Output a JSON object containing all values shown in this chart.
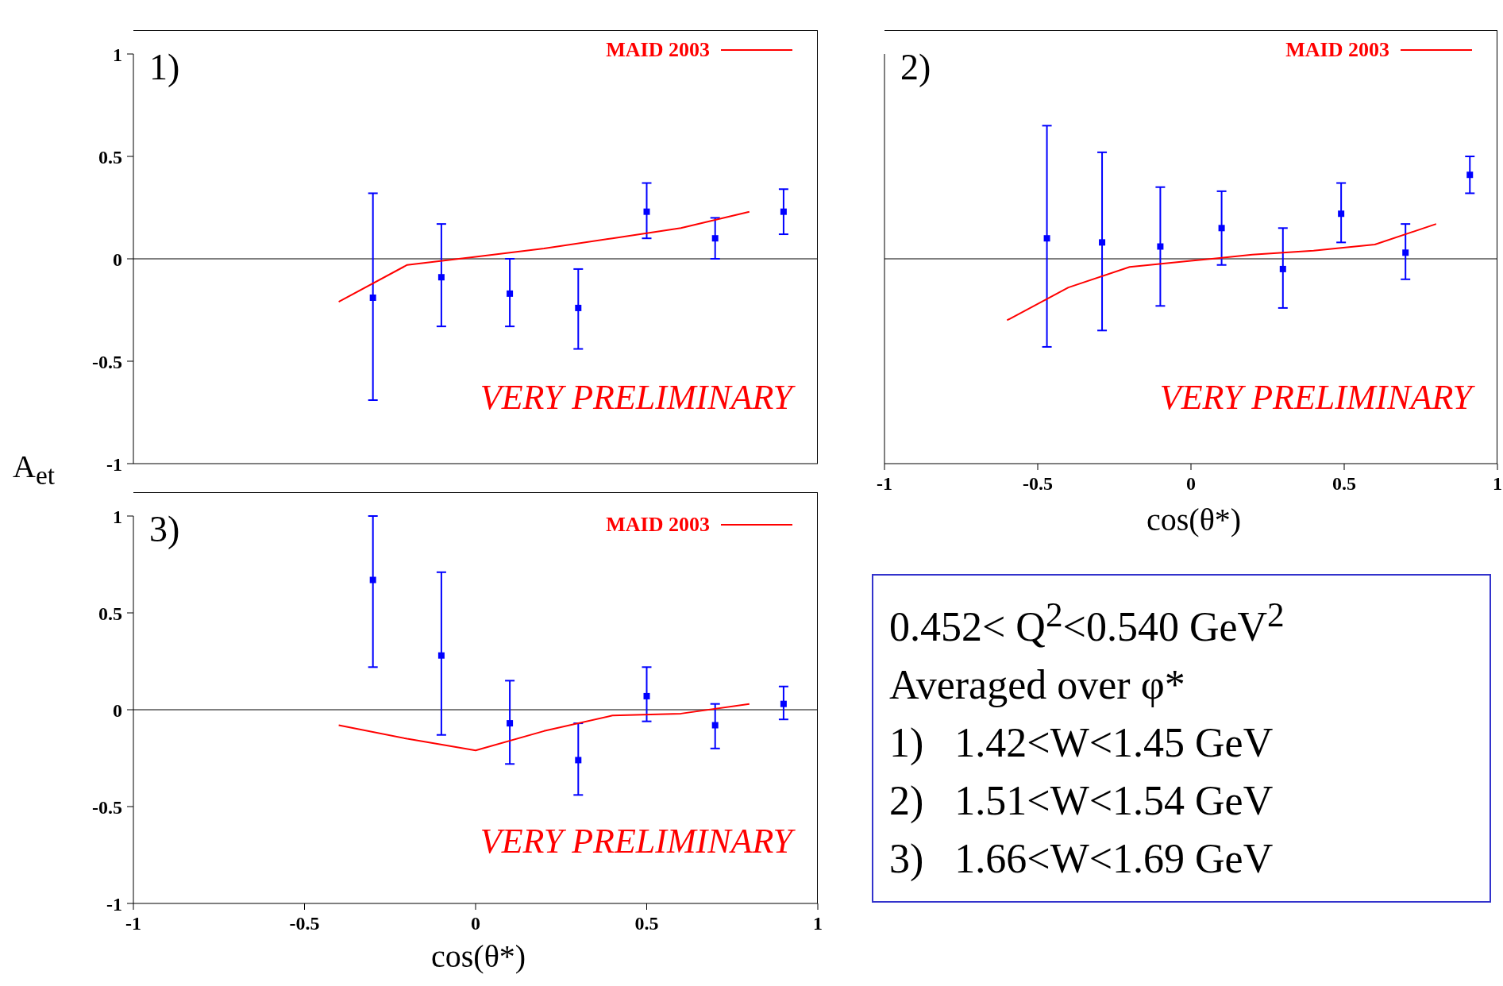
{
  "chart_data": [
    {
      "type": "scatter",
      "xlim": [
        -1,
        1
      ],
      "ylim": [
        -1,
        1
      ],
      "yticks": [
        -1,
        -0.5,
        0,
        0.5,
        1
      ],
      "xticks": [
        -1,
        -0.5,
        0,
        0.5,
        1
      ],
      "tick_labels": "y",
      "ylabel": "A$_{et}$",
      "marker": "square",
      "legend": "top right",
      "annotations": [
        "1)",
        "VERY PRELIMINARY"
      ],
      "ref_lines": [
        {
          "axis": "y",
          "value": 0,
          "color": "#000000"
        }
      ],
      "series": [
        {
          "type": "scatter",
          "color": "#0000ff",
          "x": [
            -0.3,
            -0.1,
            0.1,
            0.3,
            0.5,
            0.7,
            0.9
          ],
          "values": [
            -0.19,
            -0.09,
            -0.17,
            -0.24,
            0.23,
            0.1,
            0.23
          ],
          "errors": [
            [
              -0.69,
              0.32
            ],
            [
              -0.33,
              0.17
            ],
            [
              -0.33,
              0
            ],
            [
              -0.44,
              -0.05
            ],
            [
              0.1,
              0.37
            ],
            [
              0,
              0.2
            ],
            [
              0.12,
              0.34
            ]
          ]
        },
        {
          "type": "line",
          "marker": "none",
          "name": "MAID 2003",
          "color": "#ff0000",
          "x": [
            -0.4,
            -0.2,
            0,
            0.2,
            0.4,
            0.6,
            0.8
          ],
          "values": [
            -0.21,
            -0.03,
            0.01,
            0.05,
            0.1,
            0.15,
            0.23
          ]
        }
      ]
    },
    {
      "type": "scatter",
      "xlim": [
        -1,
        1
      ],
      "ylim": [
        -1,
        1
      ],
      "yticks": [
        -1,
        -0.5,
        0,
        0.5,
        1
      ],
      "xticks": [
        -1,
        -0.5,
        0,
        0.5,
        1
      ],
      "tick_labels": "x",
      "xlabel": "cos(θ*)",
      "marker": "square",
      "legend": "top right",
      "annotations": [
        "2)",
        "VERY PRELIMINARY"
      ],
      "ref_lines": [
        {
          "axis": "y",
          "value": 0,
          "color": "#000000"
        }
      ],
      "series": [
        {
          "type": "scatter",
          "color": "#0000ff",
          "x": [
            -0.47,
            -0.29,
            -0.1,
            0.1,
            0.3,
            0.49,
            0.7,
            0.91
          ],
          "values": [
            0.1,
            0.08,
            0.06,
            0.15,
            -0.05,
            0.22,
            0.03,
            0.41
          ],
          "errors": [
            [
              -0.43,
              0.65
            ],
            [
              -0.35,
              0.52
            ],
            [
              -0.23,
              0.35
            ],
            [
              -0.03,
              0.33
            ],
            [
              -0.24,
              0.15
            ],
            [
              0.08,
              0.37
            ],
            [
              -0.1,
              0.17
            ],
            [
              0.32,
              0.5
            ]
          ]
        },
        {
          "type": "line",
          "marker": "none",
          "name": "MAID 2003",
          "color": "#ff0000",
          "x": [
            -0.6,
            -0.4,
            -0.2,
            0,
            0.2,
            0.4,
            0.6,
            0.8
          ],
          "values": [
            -0.3,
            -0.14,
            -0.04,
            -0.01,
            0.02,
            0.04,
            0.07,
            0.17
          ]
        }
      ]
    },
    {
      "type": "scatter",
      "xlim": [
        -1,
        1
      ],
      "ylim": [
        -1,
        1
      ],
      "yticks": [
        -1,
        -0.5,
        0,
        0.5,
        1
      ],
      "xticks": [
        -1,
        -0.5,
        0,
        0.5,
        1
      ],
      "xlabel": "cos(θ*)",
      "marker": "square",
      "legend": "top right",
      "annotations": [
        "3)",
        "VERY PRELIMINARY"
      ],
      "ref_lines": [
        {
          "axis": "y",
          "value": 0,
          "color": "#000000"
        }
      ],
      "series": [
        {
          "type": "scatter",
          "color": "#0000ff",
          "x": [
            -0.3,
            -0.1,
            0.1,
            0.3,
            0.5,
            0.7,
            0.9
          ],
          "values": [
            0.67,
            0.28,
            -0.07,
            -0.26,
            0.07,
            -0.08,
            0.03
          ],
          "errors": [
            [
              0.22,
              1
            ],
            [
              -0.13,
              0.71
            ],
            [
              -0.28,
              0.15
            ],
            [
              -0.44,
              -0.07
            ],
            [
              -0.06,
              0.22
            ],
            [
              -0.2,
              0.03
            ],
            [
              -0.05,
              0.12
            ]
          ]
        },
        {
          "type": "line",
          "marker": "none",
          "name": "MAID 2003",
          "color": "#ff0000",
          "x": [
            -0.4,
            -0.2,
            0,
            0.2,
            0.4,
            0.6,
            0.8
          ],
          "values": [
            -0.08,
            -0.15,
            -0.21,
            -0.11,
            -0.03,
            -0.02,
            0.03
          ]
        }
      ]
    },
    {
      "type": "other",
      "annotations": [
        "0.452< Q$^{2}$<0.540 GeV$^{2}$",
        "Averaged over φ*",
        "1)   1.42<W<1.45 GeV",
        "2)   1.51<W<1.54 GeV",
        "3)   1.66<W<1.69 GeV"
      ]
    }
  ]
}
